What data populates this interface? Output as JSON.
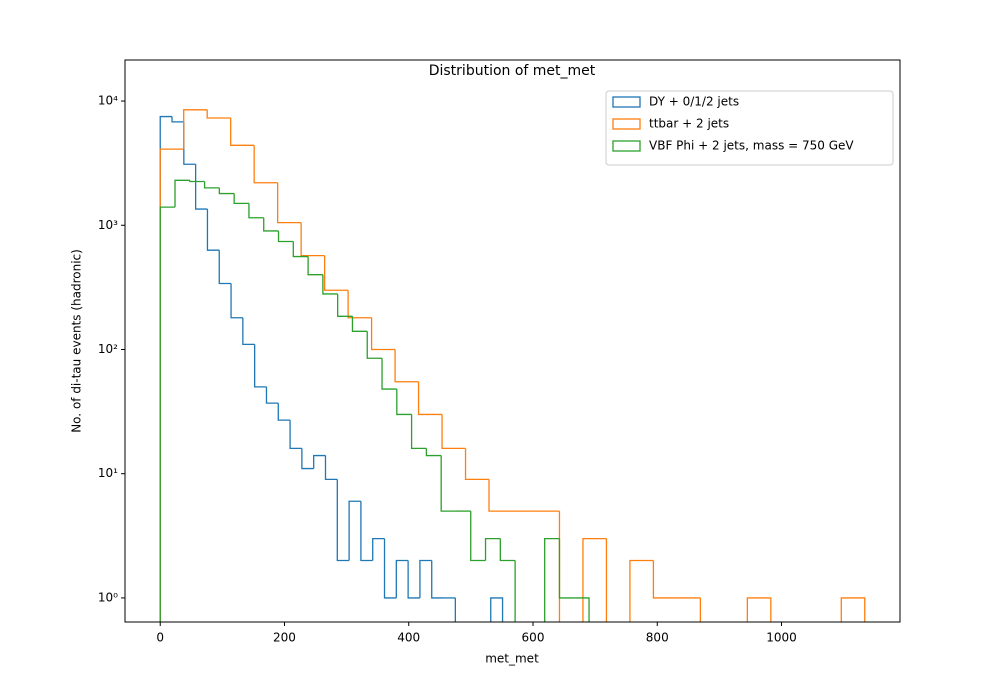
{
  "chart_data": {
    "type": "histogram",
    "title": "Distribution of met_met",
    "xlabel": "met_met",
    "ylabel": "No. of di-tau events (hadronic)",
    "xlim": [
      -56.7,
      1190.7
    ],
    "xticks": [
      0,
      200,
      400,
      600,
      800,
      1000
    ],
    "ylim": [
      0.64,
      21400
    ],
    "log_y": true,
    "yticks": [
      {
        "value": 1,
        "label": "10⁰"
      },
      {
        "value": 10,
        "label": "10¹"
      },
      {
        "value": 100,
        "label": "10²"
      },
      {
        "value": 1000,
        "label": "10³"
      },
      {
        "value": 10000,
        "label": "10⁴"
      }
    ],
    "legend": "upper right",
    "series": [
      {
        "name": "DY + 0/1/2 jets",
        "color": "#1f77b4",
        "bins": [
          0,
          19,
          38,
          57,
          76,
          95,
          114,
          133,
          152,
          171,
          190,
          209,
          228,
          247,
          266,
          285,
          304,
          323,
          342,
          361,
          380,
          399,
          418,
          437,
          456,
          475,
          494,
          513,
          532,
          551
        ],
        "values": [
          7500,
          6800,
          3100,
          1350,
          630,
          340,
          180,
          110,
          50,
          37,
          27,
          16,
          11,
          14,
          9,
          2,
          6,
          2,
          3,
          1,
          2,
          1,
          2,
          1,
          1,
          0,
          0,
          0,
          1
        ]
      },
      {
        "name": "ttbar + 2 jets",
        "color": "#ff7f0e",
        "bins": [
          0,
          37.8,
          75.6,
          113.4,
          151.2,
          189,
          226.8,
          264.6,
          302.4,
          340.2,
          378,
          415.8,
          453.6,
          491.4,
          529.2,
          567,
          604.8,
          642.6,
          680.4,
          718.2,
          756,
          793.8,
          831.6,
          869.4,
          907.2,
          945,
          982.8,
          1020.6,
          1058.4,
          1096.2,
          1134
        ],
        "values": [
          4100,
          8500,
          7300,
          4400,
          2200,
          1050,
          570,
          300,
          180,
          100,
          55,
          30,
          16,
          9,
          5,
          5,
          5,
          0,
          3,
          0,
          2,
          1,
          1,
          0,
          0,
          1,
          0,
          0,
          0,
          1
        ]
      },
      {
        "name": "VBF Phi + 2 jets, mass = 750 GeV",
        "color": "#2ca02c",
        "bins": [
          0,
          23.8,
          47.6,
          71.4,
          95.2,
          119,
          142.8,
          166.6,
          190.4,
          214.2,
          238,
          261.8,
          285.6,
          309.4,
          333.2,
          357,
          380.8,
          404.6,
          428.4,
          452.2,
          476,
          499.8,
          523.6,
          547.4,
          571.2,
          595,
          618.8,
          642.6,
          666.4,
          690.2
        ],
        "values": [
          1400,
          2300,
          2250,
          2000,
          1800,
          1500,
          1150,
          900,
          740,
          560,
          400,
          280,
          185,
          140,
          85,
          48,
          30,
          16,
          14,
          5,
          5,
          2,
          3,
          2,
          0,
          0,
          3,
          1,
          1
        ]
      }
    ]
  }
}
